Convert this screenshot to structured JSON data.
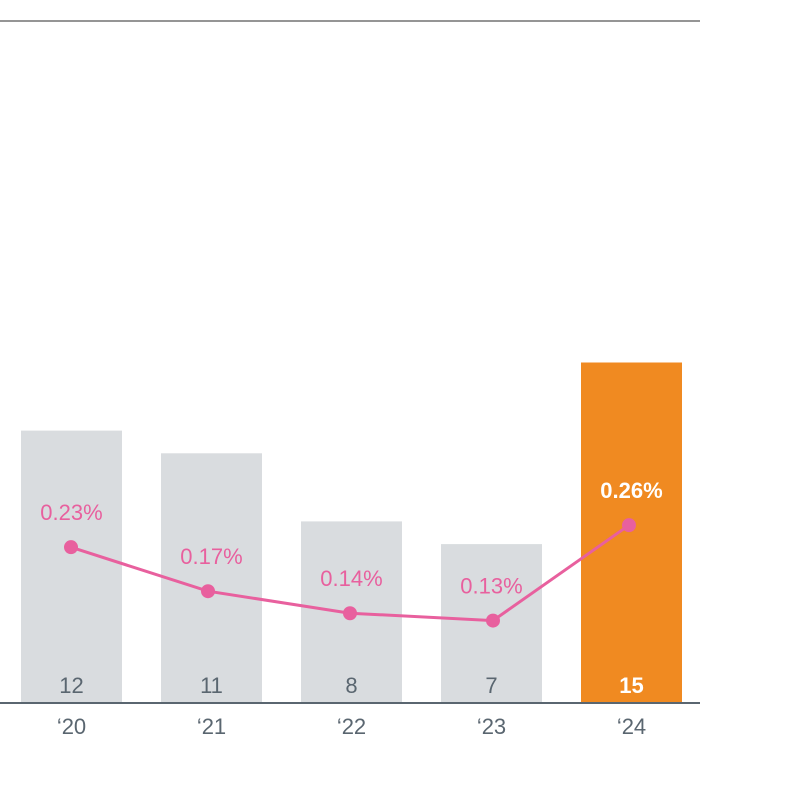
{
  "chart_data": {
    "type": "bar",
    "categories": [
      "‘20",
      "‘21",
      "‘22",
      "‘23",
      "‘24"
    ],
    "series": [
      {
        "values": [
          12,
          11,
          8,
          7,
          15
        ],
        "labels": [
          "12",
          "11",
          "8",
          "7",
          "15"
        ]
      },
      {
        "type": "line",
        "values": [
          0.23,
          0.17,
          0.14,
          0.13,
          0.26
        ],
        "labels": [
          "0.23%",
          "0.17%",
          "0.14%",
          "0.13%",
          "0.26%"
        ]
      }
    ],
    "highlight_index": 4,
    "colors": {
      "bar": "#d9dcdf",
      "highlight": "#f08a21",
      "line": "#e8609e",
      "axis": "#5a6670",
      "label": "#5a6670"
    },
    "grid": false
  }
}
